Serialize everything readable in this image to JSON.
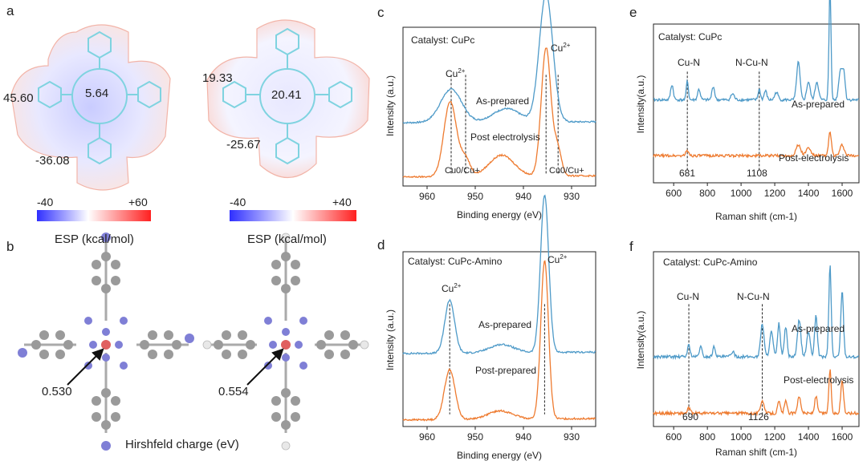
{
  "panels": {
    "a": {
      "label": "a",
      "cupc_values": [
        "45.60",
        "5.64",
        "-36.08"
      ],
      "amino_values": [
        "19.33",
        "20.41",
        "-25.67"
      ],
      "colorbar_left": {
        "min": "-40",
        "max": "+60",
        "caption": "ESP (kcal/mol)"
      },
      "colorbar_right": {
        "min": "-40",
        "max": "+40",
        "caption": "ESP (kcal/mol)"
      },
      "colors": {
        "negative": "#3b3bff",
        "neutral": "#ffffff",
        "positive": "#ff2a2a"
      }
    },
    "b": {
      "label": "b",
      "left_charge": "0.530",
      "right_charge": "0.554",
      "caption": "Hirshfeld charge (eV)",
      "colors": {
        "carbon": "#9a9a9a",
        "nitrogen": "#7f7fd6",
        "copper": "#e06060",
        "hydrogen": "#e8e8e8"
      }
    },
    "c": {
      "label": "c",
      "catalyst": "Catalyst: CuPc",
      "peak_labels": {
        "cu2_left": "Cu",
        "cu2_right": "Cu",
        "cu0_left": "Cu0/Cu+",
        "cu0_right": "Cu0/Cu+"
      },
      "superscript": "2+",
      "curve_labels": [
        "As-prepared",
        "Post electrolysis"
      ]
    },
    "d": {
      "label": "d",
      "catalyst": "Catalyst: CuPc-Amino",
      "peak_labels": {
        "cu2_left": "Cu",
        "cu2_right": "Cu"
      },
      "superscript": "2+",
      "curve_labels": [
        "As-prepared",
        "Post-prepared"
      ]
    },
    "e": {
      "label": "e",
      "catalyst": "Catalyst: CuPc",
      "peak_labels": [
        "Cu-N",
        "N-Cu-N"
      ],
      "peak_positions": [
        "681",
        "1108"
      ],
      "curve_labels": [
        "As-prepared",
        "Post-electrolysis"
      ]
    },
    "f": {
      "label": "f",
      "catalyst": "Catalyst: CuPc-Amino",
      "peak_labels": [
        "Cu-N",
        "N-Cu-N"
      ],
      "peak_positions": [
        "690",
        "1126"
      ],
      "curve_labels": [
        "As-prepared",
        "Post-electrolysis"
      ]
    }
  },
  "chart_data": [
    {
      "id": "c",
      "type": "line",
      "xlabel": "Binding energy (eV)",
      "ylabel": "Intensity (a.u.)",
      "xlim": [
        965,
        925
      ],
      "xticks": [
        "960",
        "950",
        "940",
        "930"
      ],
      "peak_markers": [
        955,
        952,
        935.3,
        932.8
      ],
      "series": [
        {
          "name": "As-prepared",
          "color": "#4e9ac8",
          "offset": 0.42,
          "peaks": [
            [
              955,
              2.2,
              0.22
            ],
            [
              943.5,
              2.8,
              0.09
            ],
            [
              935.3,
              1.4,
              0.85
            ]
          ],
          "base_slope": 0.0015
        },
        {
          "name": "Post electrolysis",
          "color": "#ee7b30",
          "offset": 0.06,
          "peaks": [
            [
              955.2,
              1.3,
              0.5
            ],
            [
              952.1,
              1.0,
              0.12
            ],
            [
              944.5,
              2.6,
              0.14
            ],
            [
              935.3,
              1.0,
              0.85
            ],
            [
              932.9,
              0.8,
              0.18
            ]
          ],
          "base_slope": 0.002
        }
      ]
    },
    {
      "id": "d",
      "type": "line",
      "xlabel": "Binding energy (eV)",
      "ylabel": "Intensity (a.u.)",
      "xlim": [
        965,
        925
      ],
      "xticks": [
        "960",
        "950",
        "940",
        "930"
      ],
      "peak_markers": [
        955.3,
        935.6
      ],
      "series": [
        {
          "name": "As-prepared",
          "color": "#4e9ac8",
          "offset": 0.44,
          "peaks": [
            [
              955.3,
              1.0,
              0.32
            ],
            [
              944.5,
              2.5,
              0.05
            ],
            [
              935.6,
              0.85,
              0.95
            ]
          ],
          "base_slope": 0.002
        },
        {
          "name": "Post-prepared",
          "color": "#ee7b30",
          "offset": 0.04,
          "peaks": [
            [
              955.3,
              1.1,
              0.3
            ],
            [
              944.8,
              2.6,
              0.05
            ],
            [
              935.6,
              0.8,
              0.95
            ]
          ],
          "base_slope": 0.002
        }
      ]
    },
    {
      "id": "e",
      "type": "line",
      "xlabel": "Raman shift (cm-1)",
      "ylabel": "Intensity(a.u.)",
      "xlim": [
        480,
        1700
      ],
      "xticks": [
        "600",
        "800",
        "1000",
        "1200",
        "1400",
        "1600"
      ],
      "peak_markers": [
        681,
        1108
      ],
      "series": [
        {
          "name": "As-prepared",
          "color": "#4e9ac8",
          "offset": 0.55,
          "peaks": [
            [
              590,
              8,
              0.1
            ],
            [
              681,
              6,
              0.13
            ],
            [
              750,
              8,
              0.07
            ],
            [
              835,
              8,
              0.09
            ],
            [
              950,
              10,
              0.04
            ],
            [
              1108,
              7,
              0.07
            ],
            [
              1145,
              8,
              0.06
            ],
            [
              1210,
              10,
              0.05
            ],
            [
              1340,
              10,
              0.25
            ],
            [
              1400,
              10,
              0.12
            ],
            [
              1450,
              10,
              0.12
            ],
            [
              1528,
              6,
              0.75
            ],
            [
              1590,
              10,
              0.2
            ],
            [
              1610,
              8,
              0.18
            ]
          ],
          "base_slope": 0.0
        },
        {
          "name": "Post-electrolysis",
          "color": "#ee7b30",
          "offset": 0.18,
          "peaks": [
            [
              681,
              10,
              0.03
            ],
            [
              1340,
              14,
              0.07
            ],
            [
              1400,
              14,
              0.05
            ],
            [
              1528,
              8,
              0.16
            ],
            [
              1600,
              12,
              0.07
            ]
          ],
          "base_slope": 0.0
        }
      ]
    },
    {
      "id": "f",
      "type": "line",
      "xlabel": "Raman shift (cm-1)",
      "ylabel": "Intensity(a.u.)",
      "xlim": [
        480,
        1700
      ],
      "xticks": [
        "600",
        "800",
        "1000",
        "1200",
        "1400",
        "1600"
      ],
      "peak_markers": [
        690,
        1126
      ],
      "series": [
        {
          "name": "As-prepared",
          "color": "#4e9ac8",
          "offset": 0.42,
          "peaks": [
            [
              690,
              8,
              0.07
            ],
            [
              760,
              8,
              0.06
            ],
            [
              840,
              8,
              0.06
            ],
            [
              950,
              10,
              0.03
            ],
            [
              1126,
              10,
              0.2
            ],
            [
              1180,
              10,
              0.15
            ],
            [
              1225,
              8,
              0.2
            ],
            [
              1265,
              8,
              0.18
            ],
            [
              1345,
              10,
              0.22
            ],
            [
              1400,
              10,
              0.15
            ],
            [
              1445,
              8,
              0.25
            ],
            [
              1528,
              7,
              0.55
            ],
            [
              1600,
              8,
              0.4
            ]
          ],
          "base_slope": 0.0
        },
        {
          "name": "Post-electrolysis",
          "color": "#ee7b30",
          "offset": 0.08,
          "peaks": [
            [
              690,
              8,
              0.03
            ],
            [
              1126,
              10,
              0.08
            ],
            [
              1225,
              8,
              0.07
            ],
            [
              1265,
              8,
              0.07
            ],
            [
              1345,
              10,
              0.1
            ],
            [
              1445,
              8,
              0.1
            ],
            [
              1528,
              7,
              0.26
            ],
            [
              1600,
              8,
              0.2
            ]
          ],
          "base_slope": 0.0
        }
      ]
    }
  ]
}
